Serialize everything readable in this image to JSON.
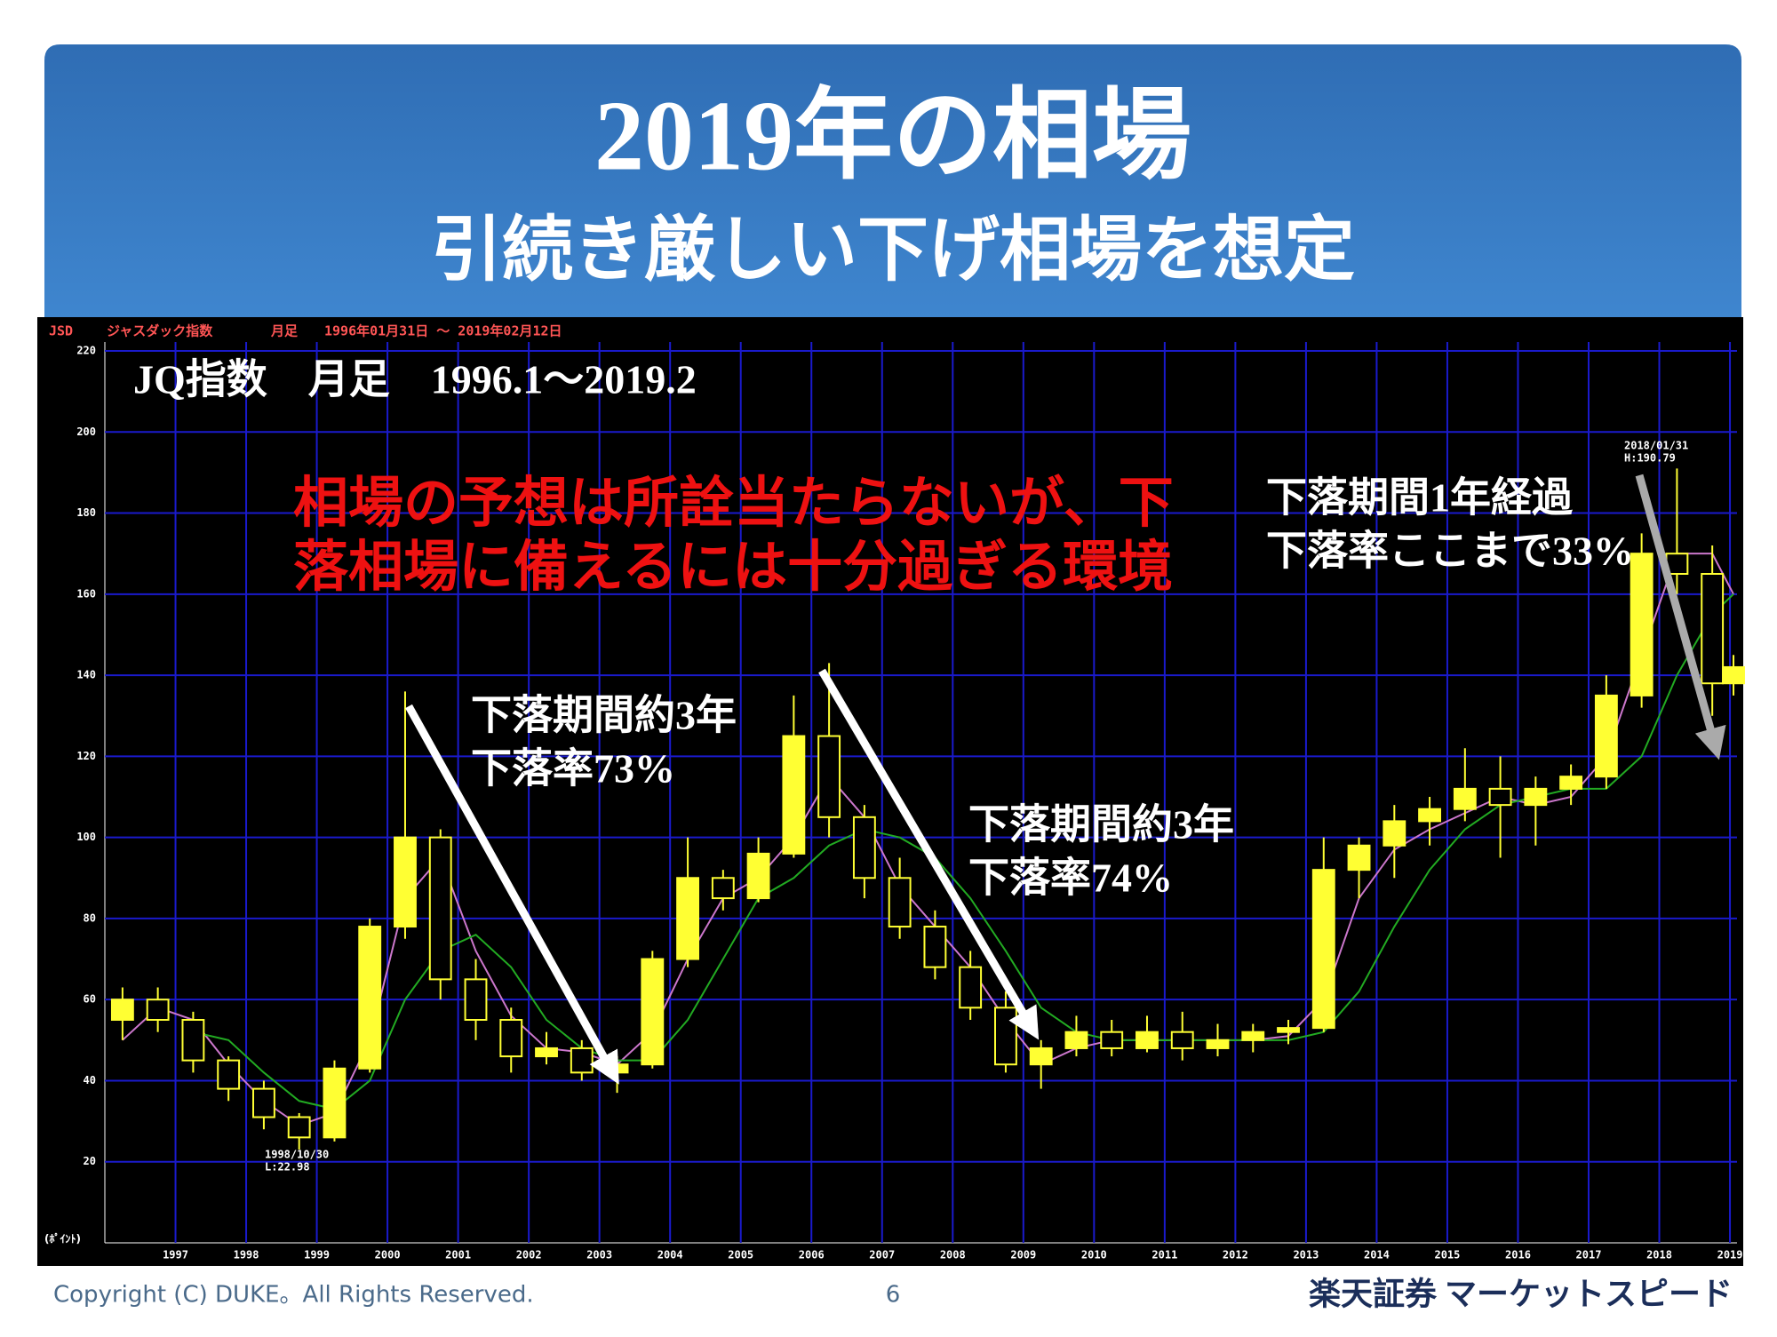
{
  "header": {
    "title": "2019年の相場",
    "subtitle": "引続き厳しい下げ相場を想定"
  },
  "footer": {
    "copyright": "Copyright (C) DUKE。All Rights Reserved.",
    "page": "6",
    "brand": "楽天証券 マーケットスピード"
  },
  "chart_data": {
    "type": "candlestick",
    "info": [
      "JSD",
      "ジャスダック指数",
      "月足",
      "1996年01月31日 ～ 2019年02月12日"
    ],
    "unit_label": "(ﾎﾟｲﾝﾄ)",
    "title": "JQ指数　月足　1996.1～2019.2",
    "headline": [
      "相場の予想は所詮当たらないが、下",
      "落相場に備えるには十分過ぎる環境"
    ],
    "annotations": [
      [
        "下落期間約3年",
        "下落率73%"
      ],
      [
        "下落期間約3年",
        "下落率74%"
      ],
      [
        "下落期間1年経過",
        "下落率ここまで33%"
      ],
      [
        "1998/10/30",
        "L:22.98"
      ],
      [
        "2018/01/31",
        "H:190.79"
      ]
    ],
    "xlim": [
      1996,
      2019.1
    ],
    "xticks": [
      1997,
      1998,
      1999,
      2000,
      2001,
      2002,
      2003,
      2004,
      2005,
      2006,
      2007,
      2008,
      2009,
      2010,
      2011,
      2012,
      2013,
      2014,
      2015,
      2016,
      2017,
      2018,
      2019
    ],
    "ylim": [
      0,
      220
    ],
    "yticks": [
      20,
      40,
      60,
      80,
      100,
      120,
      140,
      160,
      180,
      200,
      220
    ],
    "grid": true,
    "color": "#ffff33",
    "x": [
      1996.25,
      1996.75,
      1997.25,
      1997.75,
      1998.25,
      1998.75,
      1999.25,
      1999.75,
      2000.25,
      2000.75,
      2001.25,
      2001.75,
      2002.25,
      2002.75,
      2003.25,
      2003.75,
      2004.25,
      2004.75,
      2005.25,
      2005.75,
      2006.25,
      2006.75,
      2007.25,
      2007.75,
      2008.25,
      2008.75,
      2009.25,
      2009.75,
      2010.25,
      2010.75,
      2011.25,
      2011.75,
      2012.25,
      2012.75,
      2013.25,
      2013.75,
      2014.25,
      2014.75,
      2015.25,
      2015.75,
      2016.25,
      2016.75,
      2017.25,
      2017.75,
      2018.25,
      2018.75,
      2019.05
    ],
    "open": [
      55,
      60,
      55,
      45,
      38,
      31,
      26,
      43,
      78,
      100,
      65,
      55,
      46,
      48,
      42,
      44,
      70,
      90,
      85,
      96,
      125,
      105,
      90,
      78,
      68,
      58,
      44,
      48,
      52,
      48,
      52,
      48,
      50,
      52,
      53,
      92,
      98,
      104,
      107,
      112,
      108,
      112,
      115,
      135,
      170,
      165,
      138
    ],
    "high": [
      63,
      63,
      57,
      46,
      40,
      32,
      45,
      80,
      136,
      102,
      70,
      58,
      52,
      50,
      46,
      72,
      100,
      92,
      100,
      135,
      143,
      108,
      95,
      82,
      72,
      62,
      50,
      56,
      55,
      56,
      57,
      54,
      54,
      55,
      100,
      100,
      108,
      110,
      122,
      120,
      115,
      118,
      140,
      175,
      191,
      172,
      145
    ],
    "low": [
      50,
      52,
      42,
      35,
      28,
      23,
      25,
      42,
      75,
      60,
      50,
      42,
      44,
      40,
      37,
      43,
      68,
      82,
      84,
      95,
      100,
      85,
      75,
      65,
      55,
      42,
      38,
      46,
      46,
      47,
      45,
      46,
      47,
      49,
      52,
      85,
      90,
      98,
      104,
      95,
      98,
      108,
      112,
      132,
      160,
      130,
      135
    ],
    "close": [
      60,
      55,
      45,
      38,
      31,
      26,
      43,
      78,
      100,
      65,
      55,
      46,
      48,
      42,
      44,
      70,
      90,
      85,
      96,
      125,
      105,
      90,
      78,
      68,
      58,
      44,
      48,
      52,
      48,
      52,
      48,
      50,
      52,
      53,
      92,
      98,
      104,
      107,
      112,
      108,
      112,
      115,
      135,
      170,
      165,
      138,
      142
    ],
    "lines": [
      {
        "color": "#cc77cc",
        "values": [
          50,
          58,
          55,
          44,
          35,
          29,
          32,
          50,
          85,
          95,
          72,
          56,
          48,
          47,
          44,
          52,
          70,
          85,
          90,
          100,
          115,
          105,
          88,
          78,
          68,
          55,
          44,
          48,
          50,
          50,
          50,
          50,
          50,
          51,
          60,
          85,
          97,
          102,
          106,
          110,
          108,
          110,
          120,
          145,
          170,
          170,
          160
        ]
      },
      {
        "color": "#22aa22",
        "values": [
          null,
          null,
          52,
          50,
          42,
          35,
          33,
          40,
          60,
          72,
          76,
          68,
          55,
          48,
          45,
          45,
          55,
          70,
          85,
          90,
          98,
          102,
          100,
          95,
          85,
          72,
          58,
          52,
          50,
          50,
          50,
          50,
          50,
          50,
          52,
          62,
          78,
          92,
          102,
          108,
          110,
          112,
          112,
          120,
          140,
          155,
          160
        ]
      }
    ]
  }
}
